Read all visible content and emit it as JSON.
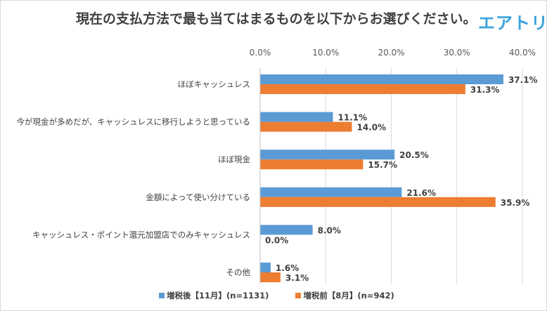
{
  "header": {
    "title": "現在の支払方法で最も当てはまるものを以下からお選びください。",
    "logo": "エアトリ"
  },
  "colors": {
    "series1": "#5b9bd5",
    "series2": "#ed7d31",
    "grid": "#d9d9d9"
  },
  "chart_data": {
    "type": "bar",
    "orientation": "horizontal",
    "title": "現在の支払方法で最も当てはまるものを以下からお選びください。",
    "xlabel": "",
    "ylabel": "",
    "xlim": [
      0,
      40
    ],
    "x_axis_position": "top",
    "tick_values": [
      0,
      10,
      20,
      30,
      40
    ],
    "tick_labels": [
      "0.0%",
      "10.0%",
      "20.0%",
      "30.0%",
      "40.0%"
    ],
    "grid": true,
    "legend_position": "bottom",
    "categories": [
      "ほぼキャッシュレス",
      "今が現金が多めだが、キャッシュレスに移行しようと思っている",
      "ほぼ現金",
      "金額によって使い分けている",
      "キャッシュレス・ポイント還元加盟店でのみキャッシュレス",
      "その他"
    ],
    "series": [
      {
        "name": "増税後【11月】(n=1131)",
        "values": [
          37.1,
          11.1,
          20.5,
          21.6,
          8.0,
          1.6
        ],
        "labels": [
          "37.1%",
          "11.1%",
          "20.5%",
          "21.6%",
          "8.0%",
          "1.6%"
        ]
      },
      {
        "name": "増税前【8月】(n=942)",
        "values": [
          31.3,
          14.0,
          15.7,
          35.9,
          0.0,
          3.1
        ],
        "labels": [
          "31.3%",
          "14.0%",
          "15.7%",
          "35.9%",
          "0.0%",
          "3.1%"
        ]
      }
    ]
  }
}
